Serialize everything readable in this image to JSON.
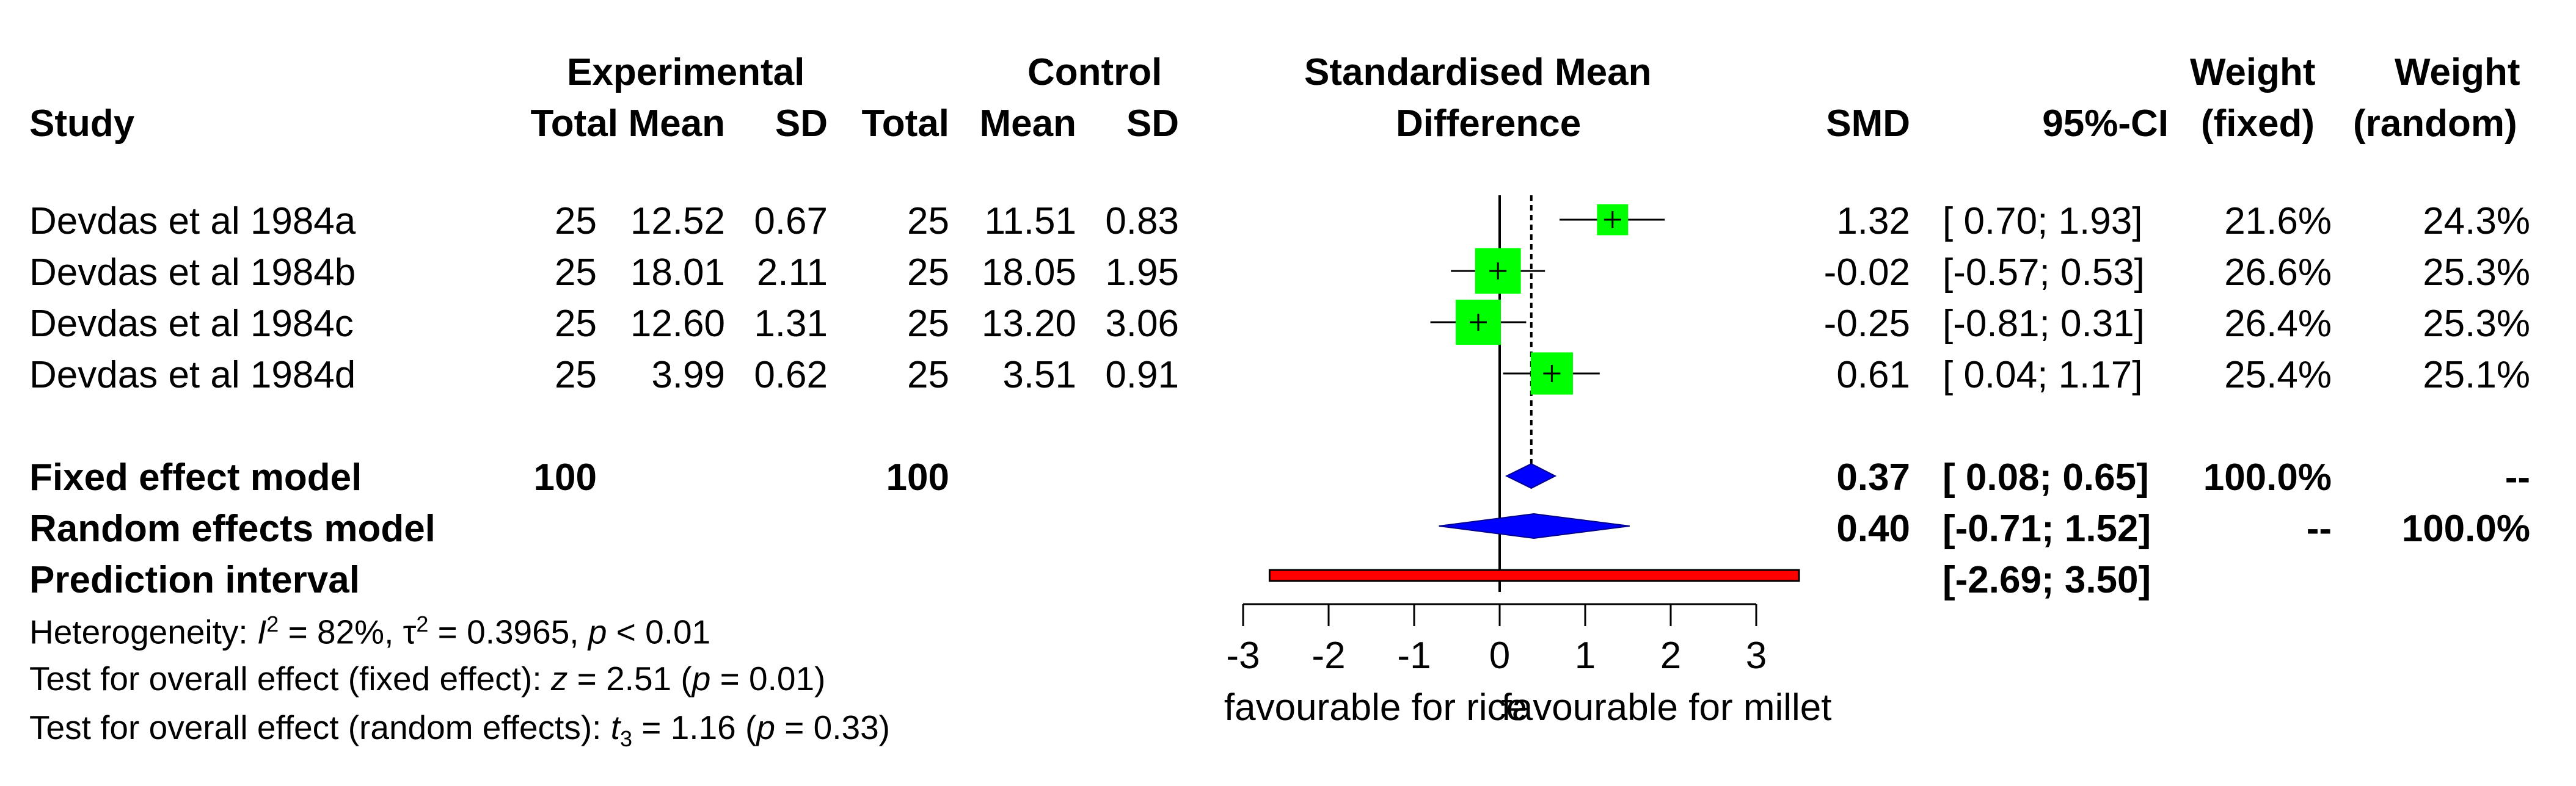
{
  "header": {
    "study": "Study",
    "experimental": "Experimental",
    "control": "Control",
    "total": "Total",
    "mean": "Mean",
    "sd": "SD",
    "smd_title_line1": "Standardised Mean",
    "smd_title_line2": "Difference",
    "smd": "SMD",
    "ci": "95%-CI",
    "weight": "Weight",
    "fixed": "(fixed)",
    "random": "(random)"
  },
  "studies": [
    {
      "name": "Devdas et al 1984a",
      "e_total": "25",
      "e_mean": "12.52",
      "e_sd": "0.67",
      "c_total": "25",
      "c_mean": "11.51",
      "c_sd": "0.83",
      "smd_text": "1.32",
      "ci_text": "[ 0.70; 1.93]",
      "w_fixed": "21.6%",
      "w_random": "24.3%"
    },
    {
      "name": "Devdas et al 1984b",
      "e_total": "25",
      "e_mean": "18.01",
      "e_sd": "2.11",
      "c_total": "25",
      "c_mean": "18.05",
      "c_sd": "1.95",
      "smd_text": "-0.02",
      "ci_text": "[-0.57; 0.53]",
      "w_fixed": "26.6%",
      "w_random": "25.3%"
    },
    {
      "name": "Devdas et al 1984c",
      "e_total": "25",
      "e_mean": "12.60",
      "e_sd": "1.31",
      "c_total": "25",
      "c_mean": "13.20",
      "c_sd": "3.06",
      "smd_text": "-0.25",
      "ci_text": "[-0.81; 0.31]",
      "w_fixed": "26.4%",
      "w_random": "25.3%"
    },
    {
      "name": "Devdas et al 1984d",
      "e_total": "25",
      "e_mean": "3.99",
      "e_sd": "0.62",
      "c_total": "25",
      "c_mean": "3.51",
      "c_sd": "0.91",
      "smd_text": "0.61",
      "ci_text": "[ 0.04; 1.17]",
      "w_fixed": "25.4%",
      "w_random": "25.1%"
    }
  ],
  "fixed_model": {
    "label": "Fixed effect model",
    "e_total": "100",
    "c_total": "100",
    "smd_text": "0.37",
    "ci_text": "[ 0.08; 0.65]",
    "w_fixed": "100.0%",
    "w_random": "--"
  },
  "random_model": {
    "label": "Random effects model",
    "smd_text": "0.40",
    "ci_text": "[-0.71; 1.52]",
    "w_fixed": "--",
    "w_random": "100.0%"
  },
  "prediction": {
    "label": "Prediction interval",
    "ci_text": "[-2.69; 3.50]"
  },
  "stats": {
    "het_prefix": "Heterogeneity: ",
    "het_i": "I",
    "het_sup": "2",
    "het_mid": " = 82%, τ",
    "het_tau_sup": "2",
    "het_rest": " = 0.3965, ",
    "het_p": "p",
    "het_pval": " < 0.01",
    "fixed_prefix": "Test for overall effect (fixed effect): ",
    "fixed_z": "z",
    "fixed_zval": " = 2.51 (",
    "fixed_p": "p",
    "fixed_pval": " = 0.01)",
    "random_prefix": "Test for overall effect (random effects): ",
    "random_t": "t",
    "random_sub": "3",
    "random_tval": " = 1.16 (",
    "random_p": "p",
    "random_pval": " = 0.33)"
  },
  "axis": {
    "left_label": "favourable for rice",
    "right_label": "favourable for millet"
  },
  "chart_data": {
    "type": "forest",
    "title": "Standardised Mean Difference",
    "xlim": [
      -3,
      3
    ],
    "ticks": [
      -3,
      -2,
      -1,
      0,
      1,
      2,
      3
    ],
    "tick_labels": [
      "-3",
      "-2",
      "-1",
      "0",
      "1",
      "2",
      "3"
    ],
    "xlabel_left": "favourable for rice",
    "xlabel_right": "favourable for millet",
    "reference_line": 0,
    "fixed_line": 0.37,
    "studies": [
      {
        "name": "Devdas et al 1984a",
        "smd": 1.32,
        "lower": 0.7,
        "upper": 1.93,
        "weight_fixed": 21.6,
        "weight_random": 24.3
      },
      {
        "name": "Devdas et al 1984b",
        "smd": -0.02,
        "lower": -0.57,
        "upper": 0.53,
        "weight_fixed": 26.6,
        "weight_random": 25.3
      },
      {
        "name": "Devdas et al 1984c",
        "smd": -0.25,
        "lower": -0.81,
        "upper": 0.31,
        "weight_fixed": 26.4,
        "weight_random": 25.3
      },
      {
        "name": "Devdas et al 1984d",
        "smd": 0.61,
        "lower": 0.04,
        "upper": 1.17,
        "weight_fixed": 25.4,
        "weight_random": 25.1
      }
    ],
    "fixed": {
      "smd": 0.37,
      "lower": 0.08,
      "upper": 0.65
    },
    "random": {
      "smd": 0.4,
      "lower": -0.71,
      "upper": 1.52
    },
    "prediction": {
      "lower": -2.69,
      "upper": 3.5
    },
    "colors": {
      "square": "#00ff00",
      "diamond": "#0000ff",
      "prediction": "#ff0000",
      "lines": "#000000"
    }
  }
}
